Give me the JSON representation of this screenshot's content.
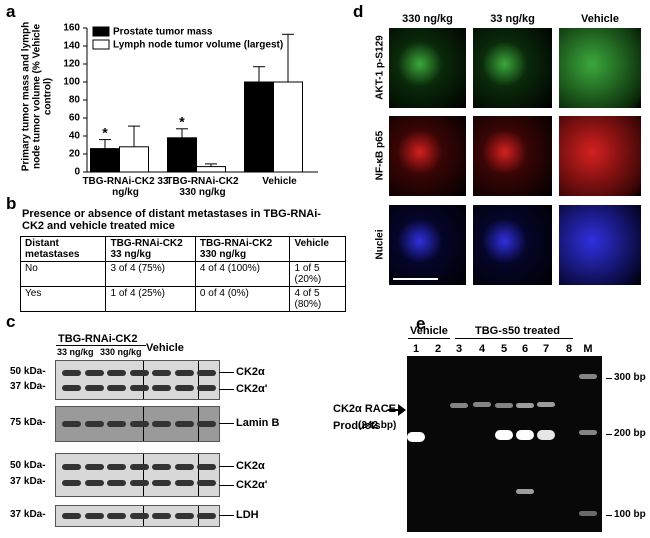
{
  "chart_data": {
    "type": "bar",
    "panel_label": "a",
    "ylabel": "Primary tumor mass and lymph node tumor volume (% Vehicle control)",
    "categories": [
      "TBG-RNAi-CK2 33 ng/kg",
      "TBG-RNAi-CK2 330 ng/kg",
      "Vehicle"
    ],
    "series": [
      {
        "name": "Prostate tumor mass",
        "color": "#000000",
        "values": [
          26,
          38,
          100
        ],
        "errors": [
          10,
          10,
          17
        ],
        "markers": [
          "*",
          "*",
          null
        ]
      },
      {
        "name": "Lymph node tumor volume (largest)",
        "color": "#ffffff",
        "values": [
          28,
          6,
          100
        ],
        "errors": [
          23,
          3,
          53
        ]
      }
    ],
    "ylim": [
      0,
      160
    ],
    "yticks": [
      0,
      20,
      40,
      60,
      80,
      100,
      120,
      140,
      160
    ]
  },
  "table": {
    "panel_label": "b",
    "title": "Presence or absence of distant metastases in TBG-RNAi-CK2 and vehicle treated mice",
    "header": [
      "Distant metastases",
      "TBG-RNAi-CK2 33 ng/kg",
      "TBG-RNAi-CK2 330 ng/kg",
      "Vehicle"
    ],
    "rows": [
      [
        "No",
        "3 of 4 (75%)",
        "4 of 4 (100%)",
        "1 of 5 (20%)"
      ],
      [
        "Yes",
        "1 of 4 (25%)",
        "0 of 4 (0%)",
        "4 of 5 (80%)"
      ]
    ]
  },
  "blots": {
    "panel_label": "c",
    "group_label": "TBG-RNAi-CK2",
    "lanes": [
      "33 ng/kg",
      "330 ng/kg",
      "Vehicle"
    ],
    "panels": [
      {
        "left": [
          "50 kDa-",
          "37 kDa-"
        ],
        "right": [
          "CK2α",
          "CK2α'"
        ]
      },
      {
        "left": [
          "75 kDa-"
        ],
        "right": [
          "Lamin B"
        ]
      },
      {
        "left": [
          "50 kDa-",
          "37 kDa-"
        ],
        "right": [
          "CK2α",
          "CK2α'"
        ]
      },
      {
        "left": [
          "37 kDa-"
        ],
        "right": [
          "LDH"
        ]
      }
    ]
  },
  "microscopy": {
    "panel_label": "d",
    "columns": [
      "330 ng/kg",
      "33 ng/kg",
      "Vehicle"
    ],
    "rows": [
      "AKT-1 p-S129",
      "NF-κB p65",
      "Nuclei"
    ]
  },
  "gel": {
    "panel_label": "e",
    "groups": [
      "Vehicle",
      "TBG-s50 treated"
    ],
    "lanes": [
      "1",
      "2",
      "3",
      "4",
      "5",
      "6",
      "7",
      "8",
      "M"
    ],
    "arrow_label": [
      "CK2α RACE",
      "Products",
      "(242 bp)"
    ],
    "markers": [
      "300 bp",
      "200 bp",
      "100 bp"
    ]
  }
}
